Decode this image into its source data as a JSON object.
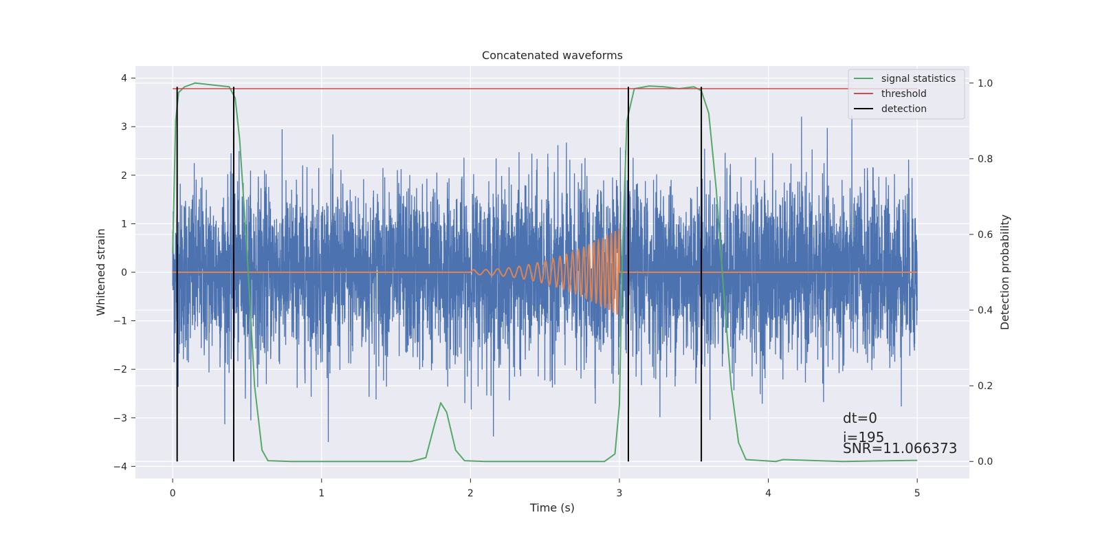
{
  "chart_data": {
    "type": "line",
    "title": "Concatenated waveforms",
    "xlabel": "Time (s)",
    "ylabel": "Whitened strain",
    "ylabel_right": "Detection probability",
    "xlim": [
      -0.25,
      5.35
    ],
    "ylim": [
      -4.25,
      4.25
    ],
    "ylim_right": [
      -0.045,
      1.045
    ],
    "x_ticks": [
      0,
      1,
      2,
      3,
      4,
      5
    ],
    "y_ticks": [
      -4,
      -3,
      -2,
      -1,
      0,
      1,
      2,
      3,
      4
    ],
    "y_ticks_right": [
      "0.0",
      "0.2",
      "0.4",
      "0.6",
      "0.8",
      "1.0"
    ],
    "grid": true,
    "legend_position": "upper-right",
    "colors": {
      "strain": "#4c72b0",
      "template": "#dd8452",
      "signal": "#55a868",
      "threshold": "#c44e52",
      "detection": "#000000",
      "axes_bg": "#eaeaf2"
    },
    "series": [
      {
        "name": "strain",
        "axis": "left",
        "description_values": {
          "x_range": [
            0,
            5
          ],
          "amplitude_std": 0.9,
          "envelope": [
            -3.5,
            3.6
          ]
        }
      },
      {
        "name": "template",
        "axis": "left",
        "chirp": {
          "x_start": 2.0,
          "x_end": 3.0,
          "amp_start": 0.05,
          "amp_end": 0.9,
          "freq_start": 12,
          "freq_end": 40
        }
      },
      {
        "name": "signal statistics",
        "axis": "right",
        "x": [
          0,
          0.02,
          0.04,
          0.08,
          0.15,
          0.38,
          0.42,
          0.45,
          0.5,
          0.55,
          0.6,
          0.64,
          0.8,
          1.6,
          1.7,
          1.76,
          1.8,
          1.84,
          1.9,
          1.96,
          2.1,
          2.9,
          2.97,
          3.0,
          3.02,
          3.05,
          3.1,
          3.2,
          3.3,
          3.4,
          3.5,
          3.55,
          3.6,
          3.65,
          3.7,
          3.75,
          3.8,
          3.85,
          4.05,
          4.1,
          4.5,
          5.0
        ],
        "values": [
          0.55,
          0.9,
          0.975,
          0.99,
          1.0,
          0.99,
          0.96,
          0.85,
          0.55,
          0.2,
          0.03,
          0.002,
          0.0,
          0.0,
          0.01,
          0.1,
          0.155,
          0.13,
          0.03,
          0.002,
          0.0,
          0.0,
          0.02,
          0.15,
          0.55,
          0.9,
          0.985,
          0.992,
          0.99,
          0.985,
          0.99,
          0.98,
          0.92,
          0.72,
          0.45,
          0.2,
          0.05,
          0.005,
          0.0,
          0.005,
          0.0,
          0.003
        ]
      },
      {
        "name": "threshold",
        "axis": "right",
        "x": [
          0,
          5
        ],
        "values": [
          0.985,
          0.985
        ]
      },
      {
        "name": "detection",
        "axis": "right",
        "x_positions": [
          0.03,
          0.41,
          3.06,
          3.55
        ],
        "y_range": [
          0.0,
          0.99
        ]
      }
    ],
    "legend": [
      "signal statistics",
      "threshold",
      "detection"
    ],
    "annotations": {
      "dt": "dt=0",
      "i": "i=195",
      "snr": "SNR=11.066373"
    }
  }
}
